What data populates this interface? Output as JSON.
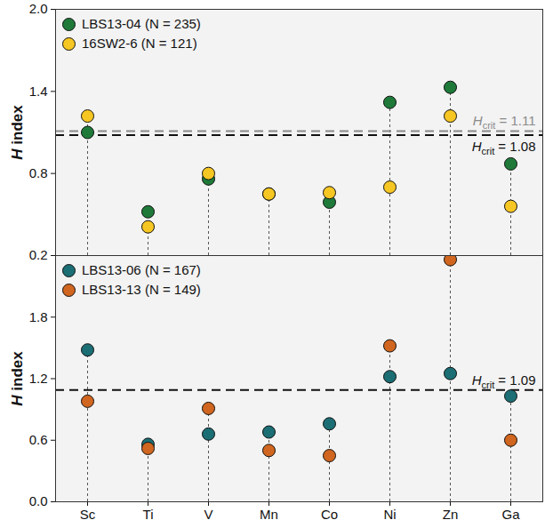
{
  "chart_data": [
    {
      "type": "scatter",
      "categories": [
        "Sc",
        "Ti",
        "V",
        "Mn",
        "Co",
        "Ni",
        "Zn",
        "Ga"
      ],
      "series": [
        {
          "name": "LBS13-04 (N = 235)",
          "color": "#1f7a3a",
          "values": [
            1.1,
            0.52,
            0.76,
            0.65,
            0.59,
            1.32,
            1.43,
            0.87
          ]
        },
        {
          "name": "16SW2-6 (N = 121)",
          "color": "#f6c623",
          "values": [
            1.22,
            0.41,
            0.8,
            0.65,
            0.66,
            0.7,
            1.22,
            0.56
          ]
        }
      ],
      "y_label": "H index",
      "ylim": [
        0.2,
        2.0
      ],
      "yticks": [
        0.2,
        0.8,
        1.4,
        {
          "value": 2,
          "label": "2.0"
        }
      ],
      "hlines": [
        {
          "value": 1.11,
          "label_parts": [
            "H",
            "crit",
            " = 1.11"
          ],
          "color": "#8a8a8a"
        },
        {
          "value": 1.08,
          "label_parts": [
            "H",
            "crit",
            " = 1.08"
          ],
          "color": "#111111"
        }
      ],
      "legend": "top-left",
      "tick_labels": "y",
      "grid": false,
      "marker": "circle"
    },
    {
      "type": "scatter",
      "categories": [
        "Sc",
        "Ti",
        "V",
        "Mn",
        "Co",
        "Ni",
        "Zn",
        "Ga"
      ],
      "series": [
        {
          "name": "LBS13-06 (N = 167)",
          "color": "#1b6e74",
          "values": [
            1.48,
            0.56,
            0.66,
            0.68,
            0.76,
            1.22,
            1.25,
            1.03
          ]
        },
        {
          "name": "LBS13-13 (N = 149)",
          "color": "#d0661f",
          "values": [
            0.98,
            0.52,
            0.91,
            0.5,
            0.45,
            1.52,
            2.36,
            0.6
          ]
        }
      ],
      "y_label": "H index",
      "ylim": [
        0,
        2.4
      ],
      "yticks": [
        {
          "value": 0,
          "label": "0.0"
        },
        0.6,
        1.2,
        1.8
      ],
      "hlines": [
        {
          "value": 1.09,
          "label_parts": [
            "H",
            "crit",
            " = 1.09"
          ],
          "color": "#111111"
        }
      ],
      "legend": "top-left",
      "tick_labels": true,
      "grid": false,
      "marker": "circle"
    }
  ]
}
